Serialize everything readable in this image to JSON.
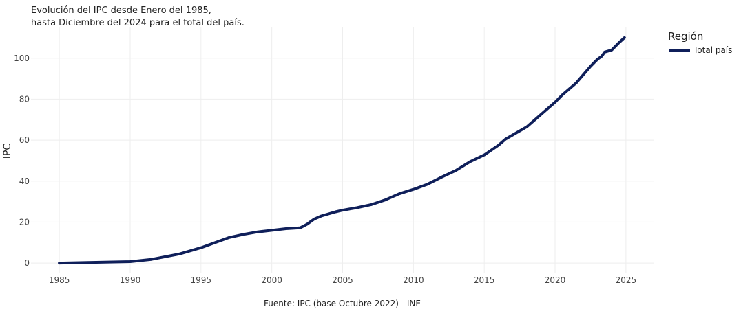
{
  "chart_data": {
    "type": "line",
    "title_lines": [
      "Evolución del IPC desde Enero del 1985,",
      "hasta Diciembre del 2024 para el total del país."
    ],
    "ylabel": "IPC",
    "xlabel": "",
    "caption": "Fuente: IPC (base Octubre 2022) - INE",
    "xlim": [
      1983,
      2027
    ],
    "ylim": [
      -5,
      115
    ],
    "x_ticks": [
      1985,
      1990,
      1995,
      2000,
      2005,
      2010,
      2015,
      2020,
      2025
    ],
    "y_ticks": [
      0,
      20,
      40,
      60,
      80,
      100
    ],
    "grid": true,
    "legend": {
      "title": "Región",
      "position": "top-right",
      "entries": [
        "Total país"
      ]
    },
    "series": [
      {
        "name": "Total país",
        "color": "#0f1f5a",
        "x": [
          1985,
          1987,
          1990,
          1991.5,
          1993.5,
          1995,
          1997,
          1998,
          1999,
          2000,
          2001,
          2002,
          2002.5,
          2002.8,
          2003,
          2003.5,
          2004,
          2004.5,
          2005,
          2006,
          2007,
          2008,
          2009,
          2010,
          2011,
          2012,
          2013,
          2014,
          2015,
          2016,
          2016.5,
          2017,
          2018,
          2019,
          2020,
          2020.5,
          2021,
          2021.5,
          2022,
          2022.5,
          2023,
          2023.3,
          2023.5,
          2024,
          2024.5,
          2024.9
        ],
        "y": [
          0,
          0.3,
          0.7,
          1.8,
          4.5,
          7.5,
          12.5,
          14,
          15.2,
          16,
          16.8,
          17.2,
          19,
          20.5,
          21.5,
          23,
          24,
          25,
          25.8,
          27,
          28.5,
          30.8,
          33.8,
          36,
          38.5,
          42,
          45.2,
          49.5,
          52.8,
          57.5,
          60.5,
          62.5,
          66.5,
          72.5,
          78.5,
          82,
          85,
          88,
          92,
          96,
          99.5,
          101,
          103,
          104,
          107.5,
          110
        ]
      }
    ]
  }
}
